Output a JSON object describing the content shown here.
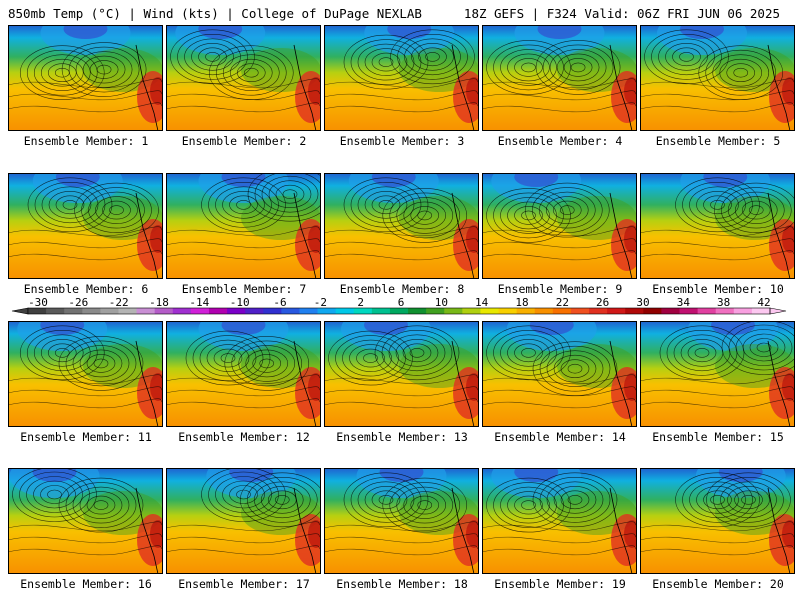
{
  "header": {
    "left_title": "850mb Temp (°C) | Wind (kts) | College of DuPage NEXLAB",
    "right_title": "18Z GEFS | F324 Valid: 06Z FRI JUN 06 2025"
  },
  "panels": [
    {
      "label": "Ensemble Member: 1",
      "lows": [
        [
          0.35,
          0.45
        ],
        [
          0.62,
          0.42
        ]
      ],
      "cold_x": 0.5
    },
    {
      "label": "Ensemble Member: 2",
      "lows": [
        [
          0.3,
          0.3
        ],
        [
          0.55,
          0.45
        ]
      ],
      "cold_x": 0.35
    },
    {
      "label": "Ensemble Member: 3",
      "lows": [
        [
          0.4,
          0.35
        ],
        [
          0.7,
          0.3
        ]
      ],
      "cold_x": 0.55
    },
    {
      "label": "Ensemble Member: 4",
      "lows": [
        [
          0.3,
          0.4
        ],
        [
          0.62,
          0.4
        ]
      ],
      "cold_x": 0.5
    },
    {
      "label": "Ensemble Member: 5",
      "lows": [
        [
          0.3,
          0.3
        ],
        [
          0.65,
          0.45
        ]
      ],
      "cold_x": 0.4
    },
    {
      "label": "Ensemble Member: 6",
      "lows": [
        [
          0.4,
          0.3
        ],
        [
          0.7,
          0.35
        ]
      ],
      "cold_x": 0.45
    },
    {
      "label": "Ensemble Member: 7",
      "lows": [
        [
          0.5,
          0.3
        ],
        [
          0.8,
          0.2
        ]
      ],
      "cold_x": 0.5
    },
    {
      "label": "Ensemble Member: 8",
      "lows": [
        [
          0.4,
          0.3
        ],
        [
          0.65,
          0.4
        ]
      ],
      "cold_x": 0.45
    },
    {
      "label": "Ensemble Member: 9",
      "lows": [
        [
          0.3,
          0.4
        ],
        [
          0.55,
          0.35
        ]
      ],
      "cold_x": 0.35
    },
    {
      "label": "Ensemble Member: 10",
      "lows": [
        [
          0.5,
          0.3
        ],
        [
          0.75,
          0.35
        ]
      ],
      "cold_x": 0.55
    },
    {
      "label": "Ensemble Member: 11",
      "lows": [
        [
          0.35,
          0.3
        ],
        [
          0.6,
          0.4
        ]
      ],
      "cold_x": 0.35
    },
    {
      "label": "Ensemble Member: 12",
      "lows": [
        [
          0.4,
          0.35
        ],
        [
          0.65,
          0.4
        ]
      ],
      "cold_x": 0.5
    },
    {
      "label": "Ensemble Member: 13",
      "lows": [
        [
          0.3,
          0.35
        ],
        [
          0.6,
          0.3
        ]
      ],
      "cold_x": 0.4
    },
    {
      "label": "Ensemble Member: 14",
      "lows": [
        [
          0.3,
          0.3
        ],
        [
          0.6,
          0.45
        ]
      ],
      "cold_x": 0.45
    },
    {
      "label": "Ensemble Member: 15",
      "lows": [
        [
          0.4,
          0.3
        ],
        [
          0.8,
          0.25
        ]
      ],
      "cold_x": 0.6
    },
    {
      "label": "Ensemble Member: 16",
      "lows": [
        [
          0.3,
          0.25
        ],
        [
          0.6,
          0.35
        ]
      ],
      "cold_x": 0.3
    },
    {
      "label": "Ensemble Member: 17",
      "lows": [
        [
          0.5,
          0.25
        ],
        [
          0.75,
          0.3
        ]
      ],
      "cold_x": 0.55
    },
    {
      "label": "Ensemble Member: 18",
      "lows": [
        [
          0.4,
          0.3
        ],
        [
          0.65,
          0.35
        ]
      ],
      "cold_x": 0.5
    },
    {
      "label": "Ensemble Member: 19",
      "lows": [
        [
          0.3,
          0.35
        ],
        [
          0.6,
          0.3
        ]
      ],
      "cold_x": 0.35
    },
    {
      "label": "Ensemble Member: 20",
      "lows": [
        [
          0.5,
          0.3
        ],
        [
          0.7,
          0.3
        ]
      ],
      "cold_x": 0.65
    }
  ],
  "colorbar": {
    "tick_labels": [
      "-30",
      "-26",
      "-22",
      "-18",
      "-14",
      "-10",
      "-6",
      "-2",
      "2",
      "6",
      "10",
      "14",
      "18",
      "22",
      "26",
      "30",
      "34",
      "38",
      "42"
    ],
    "colors": [
      "#404040",
      "#5a5a5a",
      "#727272",
      "#8a8a8a",
      "#a0a0a0",
      "#b4b4b4",
      "#c98fd4",
      "#b45cc8",
      "#a030d0",
      "#d020d8",
      "#b000b0",
      "#7a00c8",
      "#5020c8",
      "#3030d0",
      "#2858e0",
      "#2080f0",
      "#10a8f0",
      "#00c8e8",
      "#00d8c0",
      "#00c090",
      "#00a860",
      "#109030",
      "#40a020",
      "#78b818",
      "#b0d010",
      "#e8e800",
      "#f8d000",
      "#f8b000",
      "#f89000",
      "#f87000",
      "#f05020",
      "#e03020",
      "#d01818",
      "#b00808",
      "#900000",
      "#a00040",
      "#c01070",
      "#e040a0",
      "#f070c0",
      "#f8a0e0",
      "#fcc8f0"
    ]
  }
}
